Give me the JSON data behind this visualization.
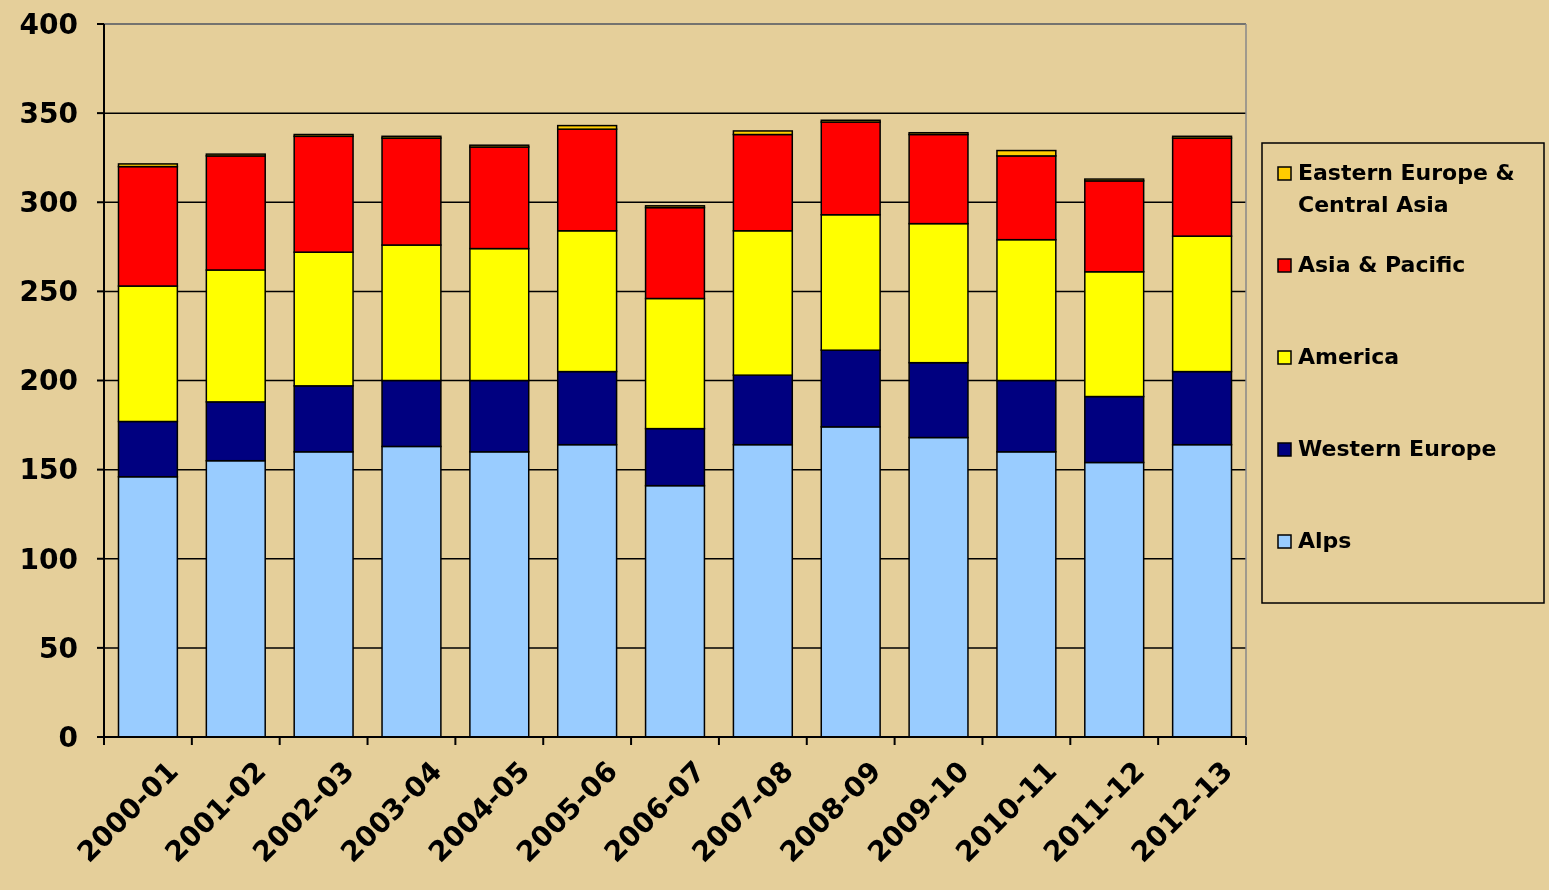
{
  "chart_data": {
    "type": "bar",
    "stacked": true,
    "categories": [
      "2000-01",
      "2001-02",
      "2002-03",
      "2003-04",
      "2004-05",
      "2005-06",
      "2006-07",
      "2007-08",
      "2008-09",
      "2009-10",
      "2010-11",
      "2011-12",
      "2012-13"
    ],
    "series": [
      {
        "name": "Alps",
        "color": "#99ccff",
        "values": [
          146,
          155,
          160,
          163,
          160,
          164,
          141,
          164,
          174,
          168,
          160,
          154,
          164
        ]
      },
      {
        "name": "Western Europe",
        "color": "#000080",
        "values": [
          31,
          33,
          37,
          37,
          40,
          41,
          32,
          39,
          43,
          42,
          40,
          37,
          41
        ]
      },
      {
        "name": "America",
        "color": "#ffff00",
        "values": [
          76,
          74,
          75,
          76,
          74,
          79,
          73,
          81,
          76,
          78,
          79,
          70,
          76
        ]
      },
      {
        "name": "Asia & Pacific",
        "color": "#ff0000",
        "values": [
          67,
          64,
          65,
          60,
          57,
          57,
          51,
          54,
          52,
          50,
          47,
          51,
          55
        ]
      },
      {
        "name": "Eastern Europe & Central Asia",
        "color": "#ffcc00",
        "values": [
          1.5,
          1,
          1,
          1,
          1,
          2,
          1,
          2,
          1,
          1,
          3,
          1,
          1
        ]
      }
    ],
    "ylim": [
      0,
      400
    ],
    "yticks": [
      0,
      50,
      100,
      150,
      200,
      250,
      300,
      350,
      400
    ],
    "grid": "y",
    "legend": "right"
  }
}
